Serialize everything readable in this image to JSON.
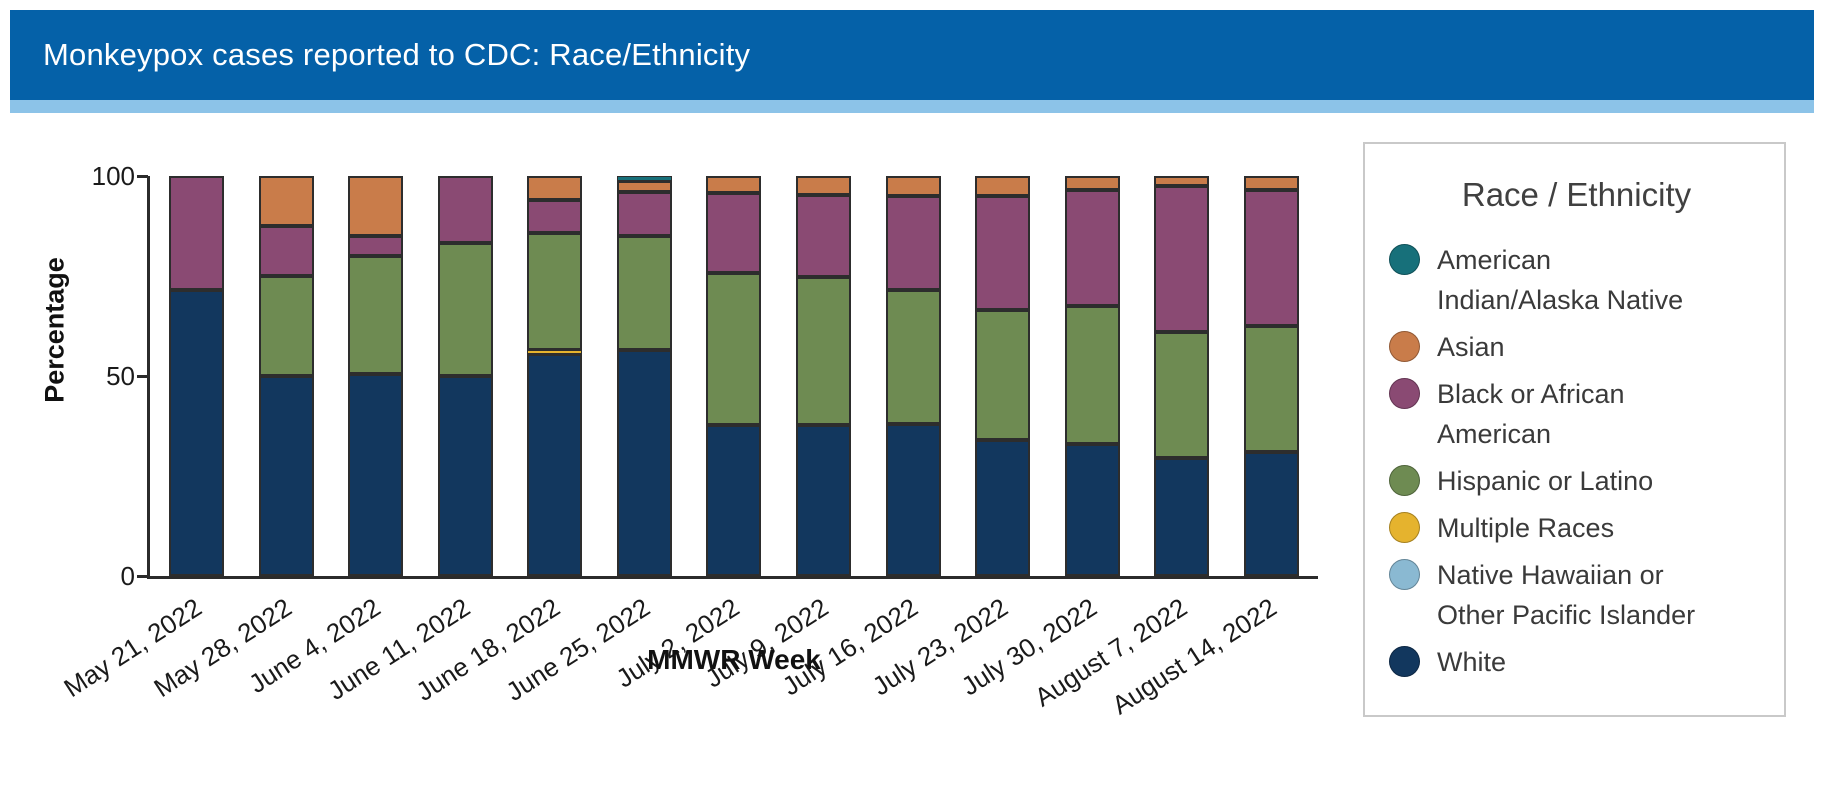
{
  "header": {
    "title": "Monkeypox cases reported to CDC: Race/Ethnicity"
  },
  "colors": {
    "header_bg": "#0561a8",
    "header_stripe": "#8cc3e8",
    "axis": "#2b2b2b",
    "segment_border": "#2d2d2d",
    "legend_border": "#c9c9c9",
    "text": "#1a1a1a"
  },
  "chart_data": {
    "type": "bar",
    "stacked": true,
    "orientation": "vertical",
    "title": "Monkeypox cases reported to CDC: Race/Ethnicity",
    "xlabel": "MMWR Week",
    "ylabel": "Percentage",
    "ylim": [
      0,
      100
    ],
    "yticks": [
      0,
      50,
      100
    ],
    "grid": false,
    "legend_title": "Race / Ethnicity",
    "legend_position": "right",
    "stack_note": "series listed in legend order; stack is rendered bottom-to-top in reverse of this list (White at bottom, American Indian/Alaska Native at top)",
    "categories": [
      "May 21, 2022",
      "May 28, 2022",
      "June 4, 2022",
      "June 11, 2022",
      "June 18, 2022",
      "June 25, 2022",
      "July 2, 2022",
      "July 9, 2022",
      "July 16, 2022",
      "July 23, 2022",
      "July 30, 2022",
      "August 7, 2022",
      "August 14, 2022"
    ],
    "series": [
      {
        "name": "American Indian/Alaska Native",
        "label_lines": [
          "American",
          "Indian/Alaska Native"
        ],
        "color": "#17707a",
        "values": [
          0,
          0,
          0,
          0,
          0,
          1.25,
          0,
          0,
          0,
          0,
          0,
          0,
          0
        ]
      },
      {
        "name": "Asian",
        "label_lines": [
          "Asian"
        ],
        "color": "#c97c4a",
        "values": [
          0,
          12.5,
          15,
          0,
          6,
          2.75,
          4.25,
          4.75,
          5,
          5,
          3.5,
          2.5,
          3.5
        ]
      },
      {
        "name": "Black or African American",
        "label_lines": [
          "Black or African",
          "American"
        ],
        "color": "#8a4a73",
        "values": [
          28.5,
          12.5,
          5,
          16.75,
          8.25,
          11,
          20,
          20.5,
          23.5,
          28.5,
          29,
          36.5,
          34
        ]
      },
      {
        "name": "Hispanic or Latino",
        "label_lines": [
          "Hispanic or Latino"
        ],
        "color": "#6e8b52",
        "values": [
          0,
          25,
          29.5,
          33.25,
          29.25,
          28.5,
          38,
          37,
          33.5,
          32.5,
          34.5,
          31.5,
          31.5
        ]
      },
      {
        "name": "Multiple Races",
        "label_lines": [
          "Multiple Races"
        ],
        "color": "#e5b32e",
        "values": [
          0,
          0,
          0,
          0,
          1,
          0,
          0,
          0,
          0,
          0,
          0,
          0,
          0
        ]
      },
      {
        "name": "Native Hawaiian or Other Pacific Islander",
        "label_lines": [
          "Native Hawaiian or",
          "Other Pacific Islander"
        ],
        "color": "#8ab9d2",
        "values": [
          0,
          0,
          0,
          0,
          0,
          0,
          0,
          0,
          0,
          0,
          0,
          0,
          0
        ]
      },
      {
        "name": "White",
        "label_lines": [
          "White"
        ],
        "color": "#12375e",
        "values": [
          71.5,
          50,
          50.5,
          50,
          55.5,
          56.5,
          37.75,
          37.75,
          38,
          34,
          33,
          29.5,
          31
        ]
      }
    ]
  }
}
